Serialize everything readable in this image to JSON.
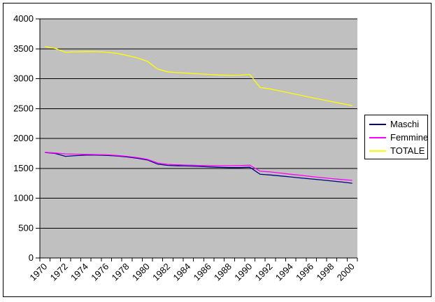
{
  "chart_data": {
    "type": "line",
    "title": "",
    "xlabel": "",
    "ylabel": "",
    "grid": "on",
    "plot_bg_color": "#c0c0c0",
    "gridline_color": "#000000",
    "axis_color": "#000000",
    "legend_position": "right",
    "ylim": [
      0,
      4000
    ],
    "ytick_interval": 500,
    "y_tick_labels": [
      "0",
      "500",
      "1000",
      "1500",
      "2000",
      "2500",
      "3000",
      "3500",
      "4000"
    ],
    "x": [
      1970,
      1971,
      1972,
      1973,
      1974,
      1975,
      1976,
      1977,
      1978,
      1979,
      1980,
      1981,
      1982,
      1983,
      1984,
      1985,
      1986,
      1987,
      1988,
      1989,
      1990,
      1991,
      1992,
      1993,
      1994,
      1995,
      1996,
      1997,
      1998,
      1999,
      2000
    ],
    "x_tick_labels": [
      "1970",
      "1972",
      "1974",
      "1976",
      "1978",
      "1980",
      "1982",
      "1984",
      "1986",
      "1988",
      "1990",
      "1992",
      "1994",
      "1996",
      "1998",
      "2000"
    ],
    "x_label_interval": 2,
    "series": [
      {
        "name": "Maschi",
        "color": "#000080",
        "values": [
          1765,
          1748,
          1700,
          1712,
          1720,
          1722,
          1717,
          1707,
          1690,
          1668,
          1640,
          1570,
          1548,
          1542,
          1538,
          1532,
          1524,
          1517,
          1512,
          1512,
          1518,
          1400,
          1388,
          1372,
          1355,
          1338,
          1322,
          1305,
          1288,
          1270,
          1250
        ]
      },
      {
        "name": "Femmine",
        "color": "#ff00ff",
        "values": [
          1768,
          1757,
          1742,
          1737,
          1733,
          1730,
          1726,
          1716,
          1700,
          1680,
          1650,
          1590,
          1566,
          1558,
          1553,
          1549,
          1546,
          1544,
          1544,
          1546,
          1552,
          1452,
          1440,
          1420,
          1400,
          1382,
          1362,
          1345,
          1327,
          1312,
          1298
        ]
      },
      {
        "name": "TOTALE",
        "color": "#ffff00",
        "values": [
          3533,
          3505,
          3442,
          3449,
          3453,
          3452,
          3443,
          3423,
          3390,
          3348,
          3290,
          3160,
          3114,
          3100,
          3091,
          3081,
          3070,
          3061,
          3056,
          3058,
          3070,
          2852,
          2828,
          2792,
          2755,
          2720,
          2684,
          2650,
          2615,
          2582,
          2548
        ]
      }
    ]
  },
  "legend": {
    "items": [
      {
        "label": "Maschi",
        "color": "#000080"
      },
      {
        "label": "Femmine",
        "color": "#ff00ff"
      },
      {
        "label": "TOTALE",
        "color": "#ffff00"
      }
    ]
  }
}
